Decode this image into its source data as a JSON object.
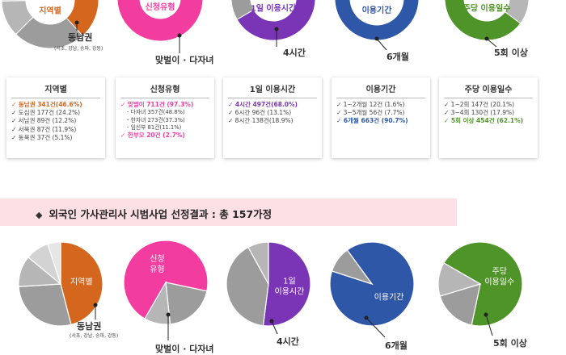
{
  "colors": {
    "orange": "#d4661e",
    "pink": "#f33ca0",
    "purple": "#7a34b6",
    "blue": "#2f57a8",
    "green": "#4f9428",
    "grey_dark": "#9c9c9c",
    "grey_mid": "#b6b6b6",
    "grey_light": "#d3d3d3",
    "grey_faint": "#e6e6e6"
  },
  "top_labels": {
    "region": "동남권",
    "region_sub": "(서초, 강남, 송파, 강동)",
    "type": "맞벌이 · 다자녀",
    "hours": "4시간",
    "period": "6개월",
    "days": "5회 이상"
  },
  "bottom_labels": {
    "region": "동남권",
    "region_sub": "(서초, 강남, 송파, 강동)",
    "type": "맞벌이 · 다자녀",
    "hours": "4시간",
    "period": "6개월",
    "days": "5회 이상"
  },
  "cards": [
    {
      "title": "지역별",
      "items": [
        {
          "text": "✓ 동남권 341건(46.6%)",
          "hl": true,
          "color": "#d4661e"
        },
        {
          "text": "✓ 도심권 177건 (24.2%)"
        },
        {
          "text": "✓ 서남권 89건 (12.2%)"
        },
        {
          "text": "✓ 서북권 87건 (11.9%)"
        },
        {
          "text": "✓ 동북권 37건 (5.1%)"
        }
      ]
    },
    {
      "title": "신청유형",
      "items": [
        {
          "text": "✓ 맞벌이 711건 (97.3%)",
          "hl": true,
          "color": "#f33ca0"
        },
        {
          "text": "- 다자녀 357건(48.8%)",
          "sub": true
        },
        {
          "text": "- 한자녀 273건(37.3%)",
          "sub": true
        },
        {
          "text": "- 임신부 81건(11.1%)",
          "sub": true
        },
        {
          "text": "✓ 한부모 20건 (2.7%)",
          "hl": true,
          "color": "#f33ca0"
        }
      ]
    },
    {
      "title": "1일 이용시간",
      "items": [
        {
          "text": "✓ 4시간 497건(68.0%)",
          "hl": true,
          "color": "#7a34b6"
        },
        {
          "text": "✓ 6시간 96건 (13.1%)"
        },
        {
          "text": "✓ 8시간 138건(18.9%)"
        }
      ]
    },
    {
      "title": "이용기간",
      "items": [
        {
          "text": "✓ 1~2개월 12건 (1.6%)"
        },
        {
          "text": "✓ 3~5개월 56건 (7.7%)"
        },
        {
          "text": "✓ 6개월 663건 (90.7%)",
          "hl": true,
          "color": "#2f57a8"
        }
      ]
    },
    {
      "title": "주당 이용일수",
      "items": [
        {
          "text": "✓ 1~2회 147건 (20.1%)"
        },
        {
          "text": "✓ 3~4회 130건 (17.9%)"
        },
        {
          "text": "✓ 5회 이상 454건 (62.1%)",
          "hl": true,
          "color": "#4f9428"
        }
      ]
    }
  ],
  "banner": {
    "bullet": "◆",
    "text": "외국인 가사관리사 시범사업 선정결과 : 총 157가정"
  },
  "chart_data": [
    {
      "type": "pie",
      "title": "지역별",
      "categories": [
        "동남권",
        "도심권",
        "서남권",
        "서북권",
        "동북권"
      ],
      "values": [
        46.6,
        24.2,
        12.2,
        11.9,
        5.1
      ],
      "unit": "%"
    },
    {
      "type": "pie",
      "title": "신청유형",
      "categories": [
        "맞벌이",
        "한부모"
      ],
      "values": [
        97.3,
        2.7
      ],
      "unit": "%"
    },
    {
      "type": "pie",
      "title": "1일 이용시간",
      "categories": [
        "4시간",
        "6시간",
        "8시간"
      ],
      "values": [
        68.0,
        13.1,
        18.9
      ],
      "unit": "%"
    },
    {
      "type": "pie",
      "title": "이용기간",
      "categories": [
        "1~2개월",
        "3~5개월",
        "6개월"
      ],
      "values": [
        1.6,
        7.7,
        90.7
      ],
      "unit": "%"
    },
    {
      "type": "pie",
      "title": "주당 이용일수",
      "categories": [
        "1~2회",
        "3~4회",
        "5회 이상"
      ],
      "values": [
        20.1,
        17.9,
        62.1
      ],
      "unit": "%"
    },
    {
      "type": "pie",
      "title": "지역별",
      "values": [
        46,
        28,
        12,
        9,
        5
      ],
      "unit": "%"
    },
    {
      "type": "pie",
      "title": "신청 유형",
      "values": [
        70,
        20,
        10
      ],
      "unit": "%"
    },
    {
      "type": "pie",
      "title": "1일 이용시간",
      "values": [
        52,
        40,
        8
      ],
      "unit": "%"
    },
    {
      "type": "pie",
      "title": "이용기간",
      "values": [
        90,
        10
      ],
      "unit": "%"
    },
    {
      "type": "pie",
      "title": "주당 이용일수",
      "values": [
        70,
        17,
        13
      ],
      "unit": "%"
    }
  ]
}
